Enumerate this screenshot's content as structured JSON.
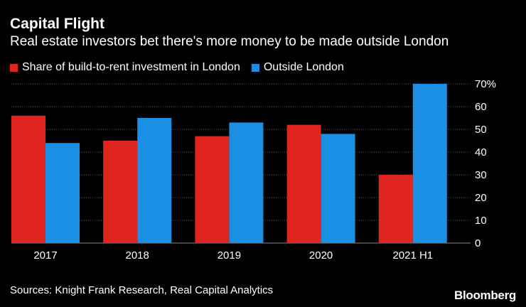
{
  "header": {
    "title": "Capital Flight",
    "subtitle": "Real estate investors bet there's more money to be made outside London"
  },
  "footer": {
    "source": "Sources: Knight Frank Research, Real Capital Analytics",
    "brand": "Bloomberg"
  },
  "chart_data": {
    "type": "bar",
    "title": "Capital Flight",
    "subtitle": "Real estate investors bet there's more money to be made outside London",
    "xlabel": "",
    "ylabel": "",
    "categories": [
      "2017",
      "2018",
      "2019",
      "2020",
      "2021 H1"
    ],
    "series": [
      {
        "name": "Share of build-to-rent investment in London",
        "color": "#e0251f",
        "values": [
          56,
          45,
          47,
          52,
          30
        ]
      },
      {
        "name": "Outside London",
        "color": "#1a8fe3",
        "values": [
          44,
          55,
          53,
          48,
          70
        ]
      }
    ],
    "ylim": [
      0,
      70
    ],
    "yticks": [
      0,
      10,
      20,
      30,
      40,
      50,
      60,
      70
    ],
    "ytick_labels": [
      "0",
      "10",
      "20",
      "30",
      "40",
      "50",
      "60",
      "70%"
    ],
    "grid": true,
    "legend_position": "top-left"
  }
}
